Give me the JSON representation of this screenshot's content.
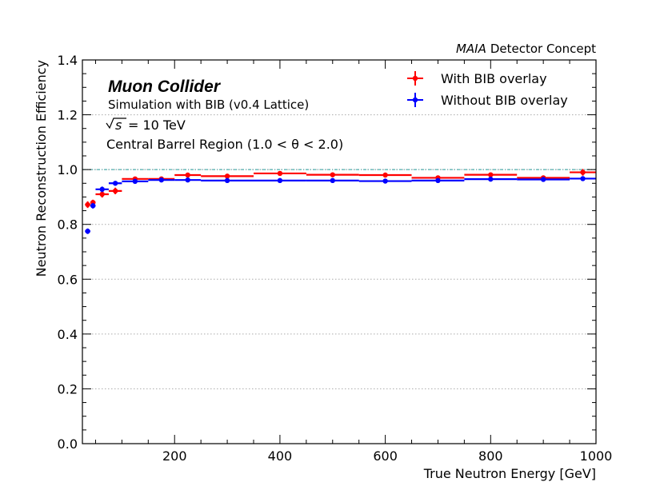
{
  "chart_data": {
    "type": "scatter",
    "title": "",
    "xlabel": "True Neutron Energy [GeV]",
    "ylabel": "Neutron Reconstruction Efficiency",
    "xlim": [
      25,
      1000
    ],
    "ylim": [
      0.0,
      1.4
    ],
    "xticks": [
      "200",
      "400",
      "600",
      "800",
      "1000"
    ],
    "yticks": [
      "0.0",
      "0.2",
      "0.4",
      "0.6",
      "0.8",
      "1.0",
      "1.2",
      "1.4"
    ],
    "grid": "horizontal-dotted",
    "reference_line": 1.0,
    "corner_label": {
      "italic": "MAIA",
      "rest": "Detector Concept"
    },
    "annotations": {
      "experiment": "Muon Collider",
      "simulation": "Simulation with BIB (v0.4 Lattice)",
      "energy_sqrt": "s",
      "energy_rest": "= 10 TeV",
      "region": "Central Barrel Region (1.0 < θ < 2.0)"
    },
    "legend_position": "top-right",
    "series": [
      {
        "name": "With BIB overlay",
        "color": "#ff0000",
        "points": [
          {
            "x": 35,
            "xlo": 30,
            "xhi": 40,
            "y": 0.872,
            "err": 0.012
          },
          {
            "x": 45,
            "xlo": 40,
            "xhi": 50,
            "y": 0.88,
            "err": 0.01
          },
          {
            "x": 62.5,
            "xlo": 50,
            "xhi": 75,
            "y": 0.91,
            "err": 0.012
          },
          {
            "x": 87.5,
            "xlo": 75,
            "xhi": 100,
            "y": 0.922,
            "err": 0.012
          },
          {
            "x": 125,
            "xlo": 100,
            "xhi": 150,
            "y": 0.966,
            "err": 0.006
          },
          {
            "x": 175,
            "xlo": 150,
            "xhi": 200,
            "y": 0.966,
            "err": 0.005
          },
          {
            "x": 225,
            "xlo": 200,
            "xhi": 250,
            "y": 0.98,
            "err": 0.005
          },
          {
            "x": 300,
            "xlo": 250,
            "xhi": 350,
            "y": 0.976,
            "err": 0.004
          },
          {
            "x": 400,
            "xlo": 350,
            "xhi": 450,
            "y": 0.986,
            "err": 0.004
          },
          {
            "x": 500,
            "xlo": 450,
            "xhi": 550,
            "y": 0.981,
            "err": 0.004
          },
          {
            "x": 600,
            "xlo": 550,
            "xhi": 650,
            "y": 0.98,
            "err": 0.004
          },
          {
            "x": 700,
            "xlo": 650,
            "xhi": 750,
            "y": 0.97,
            "err": 0.004
          },
          {
            "x": 800,
            "xlo": 750,
            "xhi": 850,
            "y": 0.981,
            "err": 0.004
          },
          {
            "x": 900,
            "xlo": 850,
            "xhi": 950,
            "y": 0.97,
            "err": 0.004
          },
          {
            "x": 975,
            "xlo": 950,
            "xhi": 1000,
            "y": 0.99,
            "err": 0.012
          }
        ]
      },
      {
        "name": "Without BIB overlay",
        "color": "#0000ff",
        "points": [
          {
            "x": 35,
            "xlo": 30,
            "xhi": 40,
            "y": 0.775,
            "err": 0.01
          },
          {
            "x": 45,
            "xlo": 40,
            "xhi": 50,
            "y": 0.868,
            "err": 0.01
          },
          {
            "x": 62.5,
            "xlo": 50,
            "xhi": 75,
            "y": 0.928,
            "err": 0.01
          },
          {
            "x": 87.5,
            "xlo": 75,
            "xhi": 100,
            "y": 0.95,
            "err": 0.008
          },
          {
            "x": 125,
            "xlo": 100,
            "xhi": 150,
            "y": 0.957,
            "err": 0.005
          },
          {
            "x": 175,
            "xlo": 150,
            "xhi": 200,
            "y": 0.962,
            "err": 0.004
          },
          {
            "x": 225,
            "xlo": 200,
            "xhi": 250,
            "y": 0.962,
            "err": 0.004
          },
          {
            "x": 300,
            "xlo": 250,
            "xhi": 350,
            "y": 0.96,
            "err": 0.004
          },
          {
            "x": 400,
            "xlo": 350,
            "xhi": 450,
            "y": 0.96,
            "err": 0.004
          },
          {
            "x": 500,
            "xlo": 450,
            "xhi": 550,
            "y": 0.96,
            "err": 0.004
          },
          {
            "x": 600,
            "xlo": 550,
            "xhi": 650,
            "y": 0.958,
            "err": 0.004
          },
          {
            "x": 700,
            "xlo": 650,
            "xhi": 750,
            "y": 0.96,
            "err": 0.004
          },
          {
            "x": 800,
            "xlo": 750,
            "xhi": 850,
            "y": 0.965,
            "err": 0.004
          },
          {
            "x": 900,
            "xlo": 850,
            "xhi": 950,
            "y": 0.964,
            "err": 0.004
          },
          {
            "x": 975,
            "xlo": 950,
            "xhi": 1000,
            "y": 0.967,
            "err": 0.006
          }
        ]
      }
    ]
  }
}
